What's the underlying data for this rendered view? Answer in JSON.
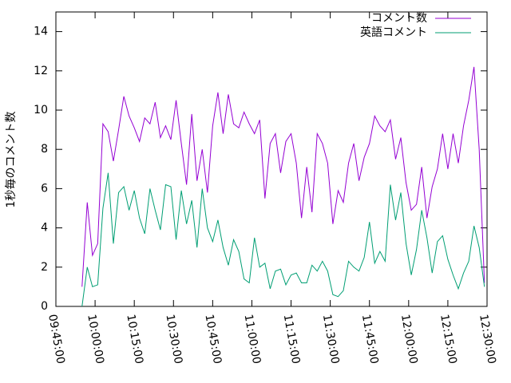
{
  "chart_data": {
    "type": "line",
    "y_label": "1秒毎のコメント数",
    "x": [
      "09:55:00",
      "09:57:00",
      "09:59:00",
      "10:01:00",
      "10:03:00",
      "10:05:00",
      "10:07:00",
      "10:09:00",
      "10:11:00",
      "10:13:00",
      "10:15:00",
      "10:17:00",
      "10:19:00",
      "10:21:00",
      "10:23:00",
      "10:25:00",
      "10:27:00",
      "10:29:00",
      "10:31:00",
      "10:33:00",
      "10:35:00",
      "10:37:00",
      "10:39:00",
      "10:41:00",
      "10:43:00",
      "10:45:00",
      "10:47:00",
      "10:49:00",
      "10:51:00",
      "10:53:00",
      "10:55:00",
      "10:57:00",
      "10:59:00",
      "11:01:00",
      "11:03:00",
      "11:05:00",
      "11:07:00",
      "11:09:00",
      "11:11:00",
      "11:13:00",
      "11:15:00",
      "11:17:00",
      "11:19:00",
      "11:21:00",
      "11:23:00",
      "11:25:00",
      "11:27:00",
      "11:29:00",
      "11:31:00",
      "11:33:00",
      "11:35:00",
      "11:37:00",
      "11:39:00",
      "11:41:00",
      "11:43:00",
      "11:45:00",
      "11:47:00",
      "11:49:00",
      "11:51:00",
      "11:53:00",
      "11:55:00",
      "11:57:00",
      "11:59:00",
      "12:01:00",
      "12:03:00",
      "12:05:00",
      "12:07:00",
      "12:09:00",
      "12:11:00",
      "12:13:00",
      "12:15:00",
      "12:17:00",
      "12:19:00",
      "12:21:00",
      "12:23:00",
      "12:25:00",
      "12:27:00",
      "12:29:00"
    ],
    "series": [
      {
        "name": "コメント数",
        "color": "#9400d3",
        "values": [
          1.0,
          5.3,
          2.6,
          3.2,
          9.3,
          8.9,
          7.4,
          9.0,
          10.7,
          9.7,
          9.1,
          8.4,
          9.6,
          9.3,
          10.4,
          8.6,
          9.2,
          8.5,
          10.5,
          8.3,
          6.2,
          9.8,
          6.4,
          8.0,
          5.8,
          9.2,
          10.9,
          8.8,
          10.8,
          9.3,
          9.1,
          9.9,
          9.3,
          8.8,
          9.5,
          5.5,
          8.3,
          8.8,
          6.8,
          8.4,
          8.8,
          7.3,
          4.5,
          7.1,
          4.8,
          8.8,
          8.3,
          7.3,
          4.2,
          5.9,
          5.3,
          7.3,
          8.3,
          6.4,
          7.6,
          8.3,
          9.7,
          9.2,
          8.9,
          9.5,
          7.5,
          8.6,
          6.3,
          4.9,
          5.2,
          7.1,
          4.5,
          6.1,
          7.0,
          8.8,
          7.0,
          8.8,
          7.3,
          9.2,
          10.5,
          12.2,
          8.0,
          1.2
        ]
      },
      {
        "name": "英語コメント",
        "color": "#009e73",
        "values": [
          0,
          2.0,
          1.0,
          1.1,
          5.0,
          6.8,
          3.2,
          5.8,
          6.1,
          4.9,
          5.9,
          4.5,
          3.7,
          6.0,
          4.9,
          3.9,
          6.2,
          6.1,
          3.4,
          5.9,
          4.2,
          5.4,
          3.0,
          6.0,
          4.0,
          3.3,
          4.4,
          3.0,
          2.1,
          3.4,
          2.8,
          1.4,
          1.2,
          3.5,
          2.0,
          2.2,
          0.9,
          1.8,
          1.9,
          1.1,
          1.6,
          1.7,
          1.2,
          1.2,
          2.1,
          1.8,
          2.3,
          1.8,
          0.6,
          0.5,
          0.8,
          2.3,
          2.0,
          1.8,
          2.5,
          4.3,
          2.2,
          2.8,
          2.3,
          6.2,
          4.4,
          5.8,
          3.2,
          1.6,
          2.9,
          4.9,
          3.5,
          1.7,
          3.3,
          3.6,
          2.4,
          1.6,
          0.9,
          1.7,
          2.3,
          4.1,
          3.0,
          1.0
        ]
      }
    ],
    "xlim": [
      "09:45:00",
      "12:30:00"
    ],
    "xticks": [
      "09:45:00",
      "10:00:00",
      "10:15:00",
      "10:30:00",
      "10:45:00",
      "11:00:00",
      "11:15:00",
      "11:30:00",
      "11:45:00",
      "12:00:00",
      "12:15:00",
      "12:30:00"
    ],
    "ylim": [
      0,
      15
    ],
    "yticks": [
      0,
      2,
      4,
      6,
      8,
      10,
      12,
      14
    ],
    "grid": false,
    "legend": "top-right"
  }
}
